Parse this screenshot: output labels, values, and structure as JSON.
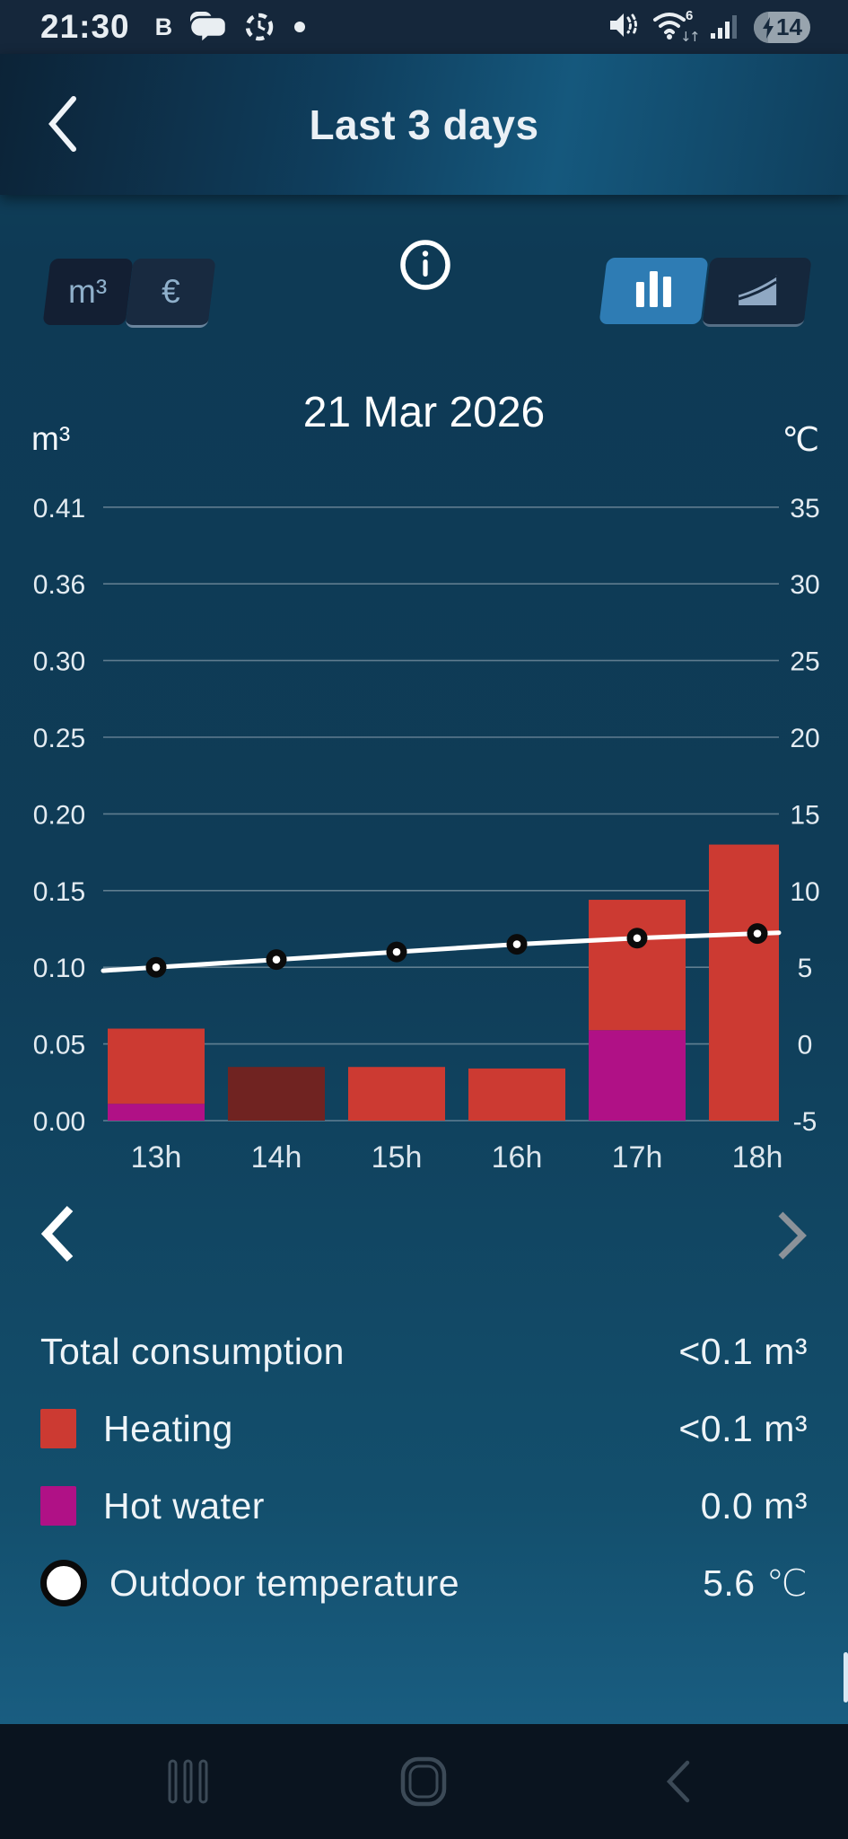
{
  "status_bar": {
    "time": "21:30",
    "notification_letter": "B",
    "battery_level": "14"
  },
  "header": {
    "title": "Last 3 days"
  },
  "controls": {
    "unit_m3_label": "m³",
    "unit_eur_label": "€"
  },
  "chart_data": {
    "type": "bar",
    "title": "21 Mar 2026",
    "left_axis_unit": "m³",
    "right_axis_unit": "℃",
    "left_ticks": [
      "0.41",
      "0.36",
      "0.30",
      "0.25",
      "0.20",
      "0.15",
      "0.10",
      "0.05",
      "0.00"
    ],
    "right_ticks": [
      "35",
      "30",
      "25",
      "20",
      "15",
      "10",
      "5",
      "0",
      "-5"
    ],
    "left_tick_step_value": 0.05,
    "right_tick_step_value": 5,
    "grid": true,
    "categories": [
      "13h",
      "14h",
      "15h",
      "16h",
      "17h",
      "18h"
    ],
    "bars": [
      {
        "hour": "13h",
        "heating": 0.049,
        "hot_water": 0.011,
        "heating_color": "#cc3a32",
        "hot_water_color": "#b01186"
      },
      {
        "hour": "14h",
        "heating": 0.035,
        "hot_water": 0,
        "heating_color": "#702321",
        "hot_water_color": "#b01186"
      },
      {
        "hour": "15h",
        "heating": 0.035,
        "hot_water": 0,
        "heating_color": "#cc3a32",
        "hot_water_color": "#b01186"
      },
      {
        "hour": "16h",
        "heating": 0.034,
        "hot_water": 0,
        "heating_color": "#cc3a32",
        "hot_water_color": "#b01186"
      },
      {
        "hour": "17h",
        "heating": 0.085,
        "hot_water": 0.059,
        "heating_color": "#cc3a32",
        "hot_water_color": "#b01186"
      },
      {
        "hour": "18h",
        "heating": 0.18,
        "hot_water": 0,
        "heating_color": "#cc3a32",
        "hot_water_color": "#b01186"
      }
    ],
    "temperature_series": {
      "name": "Outdoor temperature",
      "color": "#ffffff",
      "values_c": [
        5.0,
        5.5,
        6.0,
        6.5,
        6.9,
        7.2
      ]
    }
  },
  "summary": {
    "rows": [
      {
        "label": "Total consumption",
        "value": "<0.1 m³"
      },
      {
        "label": "Heating",
        "value": "<0.1 m³",
        "swatch_color": "#cc3a32"
      },
      {
        "label": "Hot water",
        "value": "0.0 m³",
        "swatch_color": "#b01186"
      },
      {
        "label": "Outdoor temperature",
        "value": "5.6 ℃",
        "swatch_shape": "circle",
        "swatch_color": "#ffffff"
      }
    ]
  }
}
